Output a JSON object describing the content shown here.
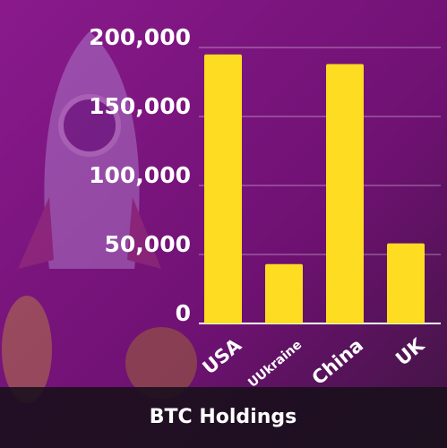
{
  "chart_data": {
    "type": "bar",
    "title": "BTC Holdings",
    "categories": [
      "USA",
      "UUkraine",
      "China",
      "UK"
    ],
    "values": [
      195000,
      43000,
      188000,
      58000
    ],
    "color": "#fddc22",
    "ylim": [
      0,
      200000
    ],
    "yticks": [
      0,
      {
        "value": 50000,
        "label": "50,000"
      },
      {
        "value": 100000,
        "label": "100,000"
      },
      {
        "value": 150000,
        "label": "150,000"
      },
      {
        "value": 200000,
        "label": "200,000"
      }
    ],
    "grid": true
  }
}
